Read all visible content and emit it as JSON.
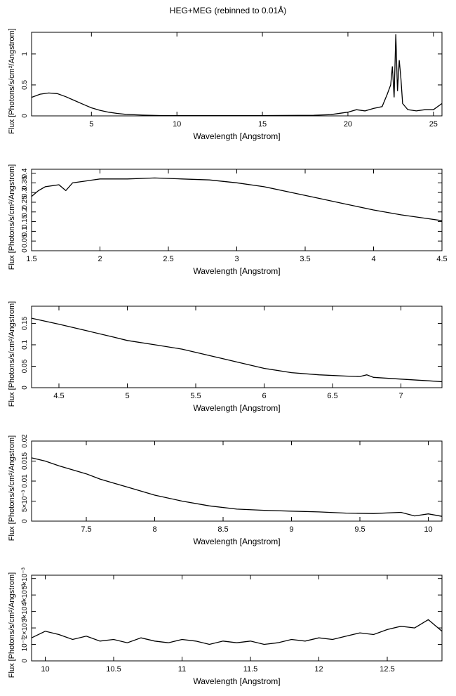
{
  "figure": {
    "title": "HEG+MEG (rebinned to 0.01Å)"
  },
  "chart_data": [
    {
      "type": "line",
      "xlabel": "Wavelength [Angstrom]",
      "ylabel": "Flux [Photons/s/cm²/Angstrom]",
      "xlim": [
        1.5,
        25.5
      ],
      "ylim": [
        0,
        1.35
      ],
      "xticks": [
        5,
        10,
        15,
        20,
        25
      ],
      "xtick_labels": [
        "5",
        "10",
        "15",
        "20",
        "25"
      ],
      "yticks": [
        0,
        0.5,
        1
      ],
      "ytick_labels": [
        "0",
        "0.5",
        "1"
      ],
      "series": [
        {
          "x": [
            1.5,
            2.0,
            2.5,
            3.0,
            3.5,
            4.0,
            4.5,
            5.0,
            5.5,
            6.0,
            6.5,
            7.0,
            8.0,
            9.0,
            10.0,
            12.0,
            15.0,
            18.0,
            19.0,
            20.0,
            20.5,
            21.0,
            21.5,
            22.0,
            22.3,
            22.5,
            22.6,
            22.7,
            22.8,
            22.9,
            23.0,
            23.1,
            23.2,
            23.5,
            24.0,
            24.5,
            25.0,
            25.5
          ],
          "y": [
            0.3,
            0.35,
            0.37,
            0.36,
            0.31,
            0.25,
            0.19,
            0.13,
            0.09,
            0.06,
            0.04,
            0.025,
            0.012,
            0.006,
            0.004,
            0.003,
            0.004,
            0.01,
            0.02,
            0.06,
            0.1,
            0.08,
            0.12,
            0.15,
            0.35,
            0.5,
            0.8,
            0.3,
            1.32,
            0.4,
            0.9,
            0.6,
            0.2,
            0.1,
            0.08,
            0.1,
            0.1,
            0.2
          ]
        }
      ]
    },
    {
      "type": "line",
      "xlabel": "Wavelength [Angstrom]",
      "ylabel": "Flux [Photons/s/cm²/Angstrom]",
      "xlim": [
        1.5,
        4.5
      ],
      "ylim": [
        0,
        0.42
      ],
      "xticks": [
        1.5,
        2,
        2.5,
        3,
        3.5,
        4,
        4.5
      ],
      "xtick_labels": [
        "1.5",
        "2",
        "2.5",
        "3",
        "3.5",
        "4",
        "4.5"
      ],
      "yticks": [
        0,
        0.05,
        0.1,
        0.15,
        0.2,
        0.25,
        0.3,
        0.35,
        0.4
      ],
      "ytick_labels": [
        "0",
        "0.05",
        "0.1",
        "0.15",
        "0.2",
        "0.25",
        "0.3",
        "0.35",
        "0.4"
      ],
      "series": [
        {
          "x": [
            1.5,
            1.55,
            1.6,
            1.7,
            1.75,
            1.8,
            1.9,
            2.0,
            2.2,
            2.4,
            2.6,
            2.8,
            3.0,
            3.2,
            3.4,
            3.6,
            3.8,
            4.0,
            4.2,
            4.4,
            4.5
          ],
          "y": [
            0.28,
            0.31,
            0.33,
            0.34,
            0.31,
            0.35,
            0.36,
            0.37,
            0.37,
            0.375,
            0.37,
            0.365,
            0.35,
            0.33,
            0.3,
            0.27,
            0.24,
            0.21,
            0.185,
            0.165,
            0.155
          ]
        }
      ]
    },
    {
      "type": "line",
      "xlabel": "Wavelength [Angstrom]",
      "ylabel": "Flux [Photons/s/cm²/Angstrom]",
      "xlim": [
        4.3,
        7.3
      ],
      "ylim": [
        0,
        0.19
      ],
      "xticks": [
        4.5,
        5,
        5.5,
        6,
        6.5,
        7
      ],
      "xtick_labels": [
        "4.5",
        "5",
        "5.5",
        "6",
        "6.5",
        "7"
      ],
      "yticks": [
        0,
        0.05,
        0.1,
        0.15
      ],
      "ytick_labels": [
        "0",
        "0.05",
        "0.1",
        "0.15"
      ],
      "series": [
        {
          "x": [
            4.3,
            4.4,
            4.5,
            4.7,
            4.9,
            5.0,
            5.2,
            5.4,
            5.6,
            5.8,
            6.0,
            6.2,
            6.4,
            6.6,
            6.7,
            6.75,
            6.8,
            7.0,
            7.2,
            7.3
          ],
          "y": [
            0.162,
            0.155,
            0.148,
            0.133,
            0.118,
            0.11,
            0.1,
            0.09,
            0.075,
            0.06,
            0.045,
            0.035,
            0.03,
            0.027,
            0.026,
            0.03,
            0.024,
            0.02,
            0.016,
            0.014
          ]
        }
      ]
    },
    {
      "type": "line",
      "xlabel": "Wavelength [Angstrom]",
      "ylabel": "Flux [Photons/s/cm²/Angstrom]",
      "xlim": [
        7.1,
        10.1
      ],
      "ylim": [
        0,
        0.02
      ],
      "xticks": [
        7.5,
        8,
        8.5,
        9,
        9.5,
        10
      ],
      "xtick_labels": [
        "7.5",
        "8",
        "8.5",
        "9",
        "9.5",
        "10"
      ],
      "yticks": [
        0,
        0.005,
        0.01,
        0.015,
        0.02
      ],
      "ytick_labels": [
        "0",
        "5×10⁻³",
        "0.01",
        "0.015",
        "0.02"
      ],
      "series": [
        {
          "x": [
            7.1,
            7.2,
            7.3,
            7.4,
            7.5,
            7.6,
            7.7,
            7.8,
            7.9,
            8.0,
            8.2,
            8.4,
            8.6,
            8.8,
            9.0,
            9.2,
            9.4,
            9.6,
            9.8,
            9.9,
            10.0,
            10.1
          ],
          "y": [
            0.0158,
            0.015,
            0.0138,
            0.0128,
            0.0118,
            0.0105,
            0.0095,
            0.0085,
            0.0075,
            0.0065,
            0.005,
            0.0038,
            0.003,
            0.0027,
            0.0025,
            0.0023,
            0.002,
            0.0019,
            0.0022,
            0.0013,
            0.0018,
            0.0012
          ]
        }
      ]
    },
    {
      "type": "line",
      "xlabel": "Wavelength [Angstrom]",
      "ylabel": "Flux [Photons/s/cm²/Angstrom]",
      "xlim": [
        9.9,
        12.9
      ],
      "ylim": [
        0,
        0.0052
      ],
      "xticks": [
        10,
        10.5,
        11,
        11.5,
        12,
        12.5
      ],
      "xtick_labels": [
        "10",
        "10.5",
        "11",
        "11.5",
        "12",
        "12.5"
      ],
      "yticks": [
        0,
        0.001,
        0.002,
        0.003,
        0.004,
        0.005
      ],
      "ytick_labels": [
        "0",
        "10⁻³",
        "2×10⁻³",
        "3×10⁻³",
        "4×10⁻³",
        "5×10⁻³"
      ],
      "series": [
        {
          "x": [
            9.9,
            10.0,
            10.1,
            10.2,
            10.3,
            10.4,
            10.5,
            10.6,
            10.7,
            10.8,
            10.9,
            11.0,
            11.1,
            11.2,
            11.3,
            11.4,
            11.5,
            11.6,
            11.7,
            11.8,
            11.9,
            12.0,
            12.1,
            12.2,
            12.3,
            12.4,
            12.5,
            12.6,
            12.7,
            12.8,
            12.9
          ],
          "y": [
            0.0014,
            0.0018,
            0.0016,
            0.0013,
            0.0015,
            0.0012,
            0.0013,
            0.0011,
            0.0014,
            0.0012,
            0.0011,
            0.0013,
            0.0012,
            0.001,
            0.0012,
            0.0011,
            0.0012,
            0.001,
            0.0011,
            0.0013,
            0.0012,
            0.0014,
            0.0013,
            0.0015,
            0.0017,
            0.0016,
            0.0019,
            0.0021,
            0.002,
            0.0025,
            0.0018
          ]
        }
      ]
    }
  ]
}
